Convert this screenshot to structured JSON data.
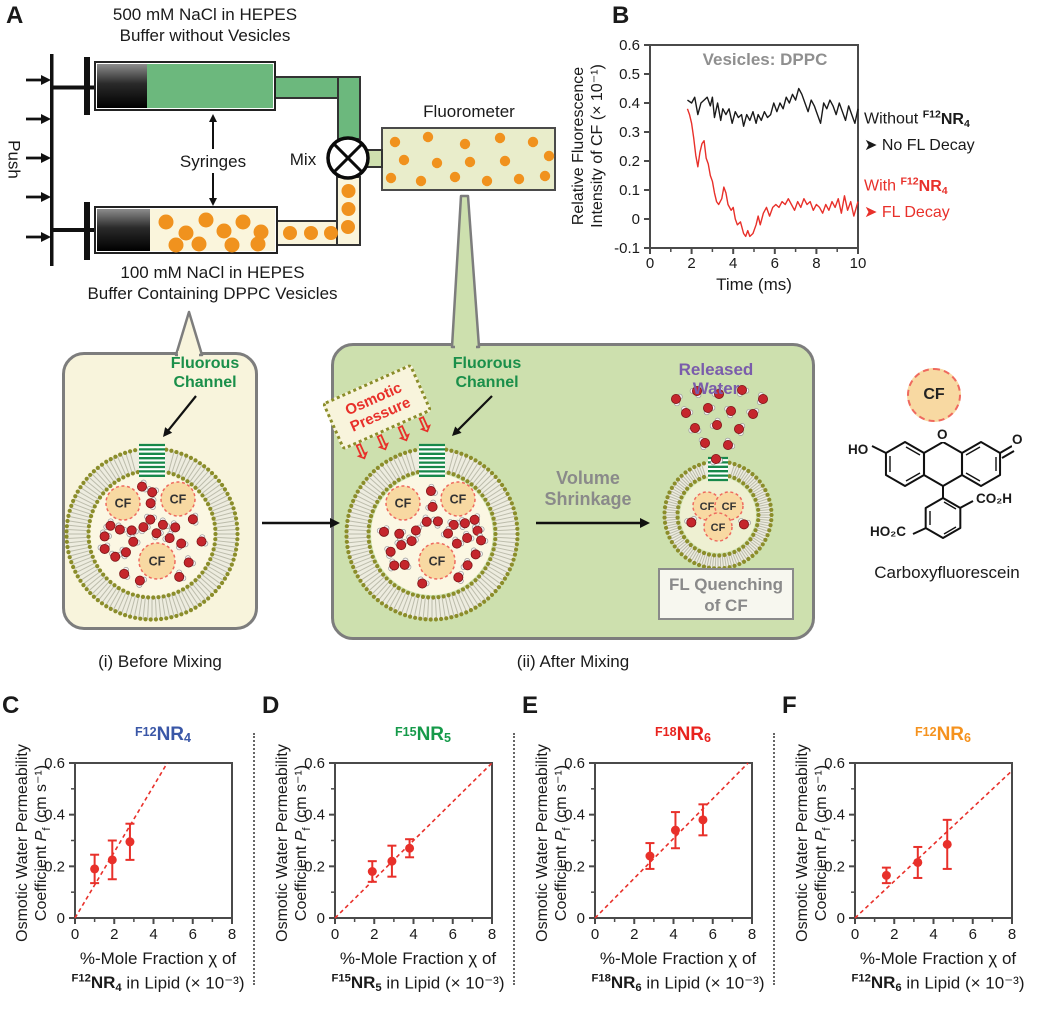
{
  "figure": {
    "panel_labels": {
      "A": "A",
      "B": "B",
      "C": "C",
      "D": "D",
      "E": "E",
      "F": "F"
    },
    "schematic": {
      "push": "Push",
      "top_reservoir": [
        "500 mM NaCl in HEPES",
        "Buffer without Vesicles"
      ],
      "bottom_reservoir": [
        "100 mM NaCl in HEPES",
        "Buffer Containing DPPC Vesicles"
      ],
      "syringes": "Syringes",
      "mix": "Mix",
      "fluorometer": "Fluorometer",
      "fluorous_channel": [
        "Fluorous",
        "Channel"
      ],
      "before_caption": "(i) Before Mixing",
      "after_caption": "(ii) After Mixing",
      "osmotic": [
        "Osmotic",
        "Pressure"
      ],
      "osmotic_arrow_icon": "⇩",
      "volume": [
        "Volume",
        "Shrinkage"
      ],
      "released": [
        "Released",
        "Water"
      ],
      "quench": [
        "FL Quenching",
        "of CF"
      ],
      "cf": "CF",
      "molecule": {
        "caption": "Carboxyfluorescein",
        "ho": "HO",
        "o_top": "O",
        "o_right": "O",
        "co2h": "CO₂H",
        "ho2c": "HO₂C"
      }
    }
  },
  "chart_data": [
    {
      "type": "line",
      "title": "Vesicles: DPPC",
      "title_color": "#8f8f8f",
      "xlabel": "Time (ms)",
      "ylabel_lines": [
        "Relative Fluorescence",
        "Intensity of CF (× 10⁻¹)"
      ],
      "xlim": [
        0,
        10
      ],
      "ylim": [
        -0.1,
        0.6
      ],
      "xticks": [
        0,
        2,
        4,
        6,
        8,
        10
      ],
      "xminor": [
        1,
        3,
        5,
        7,
        9
      ],
      "yticks": [
        0.6,
        0.5,
        0.4,
        0.3,
        0.2,
        0.1,
        0,
        -0.1
      ],
      "series": [
        {
          "name": "Without F12NR4",
          "color": "#1a1a1a",
          "points": [
            [
              1.8,
              0.41
            ],
            [
              2.0,
              0.4
            ],
            [
              2.15,
              0.42
            ],
            [
              2.3,
              0.36
            ],
            [
              2.45,
              0.4
            ],
            [
              2.6,
              0.41
            ],
            [
              2.75,
              0.42
            ],
            [
              2.9,
              0.39
            ],
            [
              3.0,
              0.42
            ],
            [
              3.1,
              0.35
            ],
            [
              3.25,
              0.4
            ],
            [
              3.4,
              0.34
            ],
            [
              3.5,
              0.38
            ],
            [
              3.65,
              0.36
            ],
            [
              3.8,
              0.38
            ],
            [
              3.95,
              0.33
            ],
            [
              4.1,
              0.37
            ],
            [
              4.25,
              0.35
            ],
            [
              4.4,
              0.36
            ],
            [
              4.5,
              0.32
            ],
            [
              4.65,
              0.36
            ],
            [
              4.8,
              0.34
            ],
            [
              4.95,
              0.37
            ],
            [
              5.1,
              0.33
            ],
            [
              5.2,
              0.36
            ],
            [
              5.35,
              0.34
            ],
            [
              5.5,
              0.37
            ],
            [
              5.65,
              0.35
            ],
            [
              5.8,
              0.36
            ],
            [
              5.95,
              0.4
            ],
            [
              6.1,
              0.37
            ],
            [
              6.25,
              0.4
            ],
            [
              6.4,
              0.38
            ],
            [
              6.55,
              0.42
            ],
            [
              6.7,
              0.4
            ],
            [
              6.85,
              0.43
            ],
            [
              7.0,
              0.41
            ],
            [
              7.15,
              0.45
            ],
            [
              7.3,
              0.43
            ],
            [
              7.45,
              0.4
            ],
            [
              7.6,
              0.37
            ],
            [
              7.75,
              0.41
            ],
            [
              7.9,
              0.39
            ],
            [
              8.05,
              0.36
            ],
            [
              8.2,
              0.33
            ],
            [
              8.35,
              0.4
            ],
            [
              8.5,
              0.38
            ],
            [
              8.65,
              0.41
            ],
            [
              8.8,
              0.39
            ],
            [
              8.95,
              0.36
            ],
            [
              9.1,
              0.4
            ],
            [
              9.25,
              0.37
            ],
            [
              9.4,
              0.34
            ],
            [
              9.55,
              0.39
            ],
            [
              9.7,
              0.36
            ],
            [
              9.85,
              0.33
            ],
            [
              10.0,
              0.38
            ]
          ]
        },
        {
          "name": "With F12NR4",
          "color": "#e8302a",
          "points": [
            [
              1.8,
              0.38
            ],
            [
              1.9,
              0.36
            ],
            [
              2.0,
              0.33
            ],
            [
              2.1,
              0.28
            ],
            [
              2.2,
              0.22
            ],
            [
              2.3,
              0.18
            ],
            [
              2.4,
              0.23
            ],
            [
              2.5,
              0.26
            ],
            [
              2.6,
              0.27
            ],
            [
              2.7,
              0.21
            ],
            [
              2.8,
              0.19
            ],
            [
              2.9,
              0.15
            ],
            [
              3.0,
              0.13
            ],
            [
              3.1,
              0.09
            ],
            [
              3.2,
              0.06
            ],
            [
              3.3,
              0.05
            ],
            [
              3.45,
              0.07
            ],
            [
              3.55,
              0.11
            ],
            [
              3.65,
              0.09
            ],
            [
              3.75,
              0.05
            ],
            [
              3.9,
              0.03
            ],
            [
              4.0,
              0.04
            ],
            [
              4.1,
              0.0
            ],
            [
              4.2,
              -0.02
            ],
            [
              4.35,
              -0.01
            ],
            [
              4.5,
              -0.05
            ],
            [
              4.6,
              -0.06
            ],
            [
              4.7,
              -0.04
            ],
            [
              4.8,
              -0.06
            ],
            [
              4.95,
              -0.05
            ],
            [
              5.1,
              -0.02
            ],
            [
              5.2,
              0.01
            ],
            [
              5.3,
              -0.02
            ],
            [
              5.45,
              0.02
            ],
            [
              5.6,
              0.04
            ],
            [
              5.75,
              0.01
            ],
            [
              5.9,
              0.04
            ],
            [
              6.05,
              0.05
            ],
            [
              6.2,
              0.04
            ],
            [
              6.35,
              0.06
            ],
            [
              6.5,
              0.05
            ],
            [
              6.65,
              0.07
            ],
            [
              6.8,
              0.05
            ],
            [
              6.95,
              0.03
            ],
            [
              7.1,
              0.06
            ],
            [
              7.25,
              0.04
            ],
            [
              7.4,
              0.07
            ],
            [
              7.55,
              0.05
            ],
            [
              7.7,
              0.06
            ],
            [
              7.85,
              0.03
            ],
            [
              8.0,
              0.05
            ],
            [
              8.15,
              0.04
            ],
            [
              8.3,
              0.02
            ],
            [
              8.45,
              0.05
            ],
            [
              8.6,
              0.03
            ],
            [
              8.75,
              0.06
            ],
            [
              8.9,
              0.04
            ],
            [
              9.05,
              0.07
            ],
            [
              9.2,
              0.02
            ],
            [
              9.35,
              0.08
            ],
            [
              9.5,
              0.03
            ],
            [
              9.65,
              0.06
            ],
            [
              9.8,
              0.01
            ],
            [
              10.0,
              0.06
            ]
          ]
        }
      ],
      "annotations": [
        {
          "color": "#1a1a1a",
          "prefix": "Without ",
          "sup": "F12",
          "base": "NR",
          "sub": "4",
          "line2": "➤ No FL Decay"
        },
        {
          "color": "#e8302a",
          "prefix": "With ",
          "sup": "F12",
          "base": "NR",
          "sub": "4",
          "line2": "➤ FL Decay"
        }
      ]
    },
    {
      "type": "scatter",
      "panel": "C",
      "title": {
        "sup": "F12",
        "base": "NR",
        "sub": "4",
        "color": "#3a57a7"
      },
      "xlabel_line1": "%-Mole Fraction χ of",
      "xlabel_sup": "F12",
      "xlabel_base": "NR",
      "xlabel_sub": "4",
      "xlabel_post": " in Lipid (× 10⁻³)",
      "ylabel_line1": "Osmotic Water Permeability",
      "ylabel_pre": "Coefficient ",
      "ylabel_P": "P",
      "ylabel_Psub": "f",
      "ylabel_post": " (cm s⁻¹)",
      "xlim": [
        0,
        8
      ],
      "ylim": [
        0,
        0.6
      ],
      "xticks": [
        0,
        2,
        4,
        6,
        8
      ],
      "xminor": [
        1,
        3,
        5,
        7
      ],
      "yticks": [
        0,
        0.2,
        0.4,
        0.6
      ],
      "yminor": [
        0.1,
        0.3,
        0.5
      ],
      "marker_color": "#e8302a",
      "points": [
        [
          1.0,
          0.19,
          0.055
        ],
        [
          1.9,
          0.225,
          0.075
        ],
        [
          2.8,
          0.295,
          0.07
        ]
      ],
      "trend": [
        4.7,
        0.6
      ]
    },
    {
      "type": "scatter",
      "panel": "D",
      "title": {
        "sup": "F15",
        "base": "NR",
        "sub": "5",
        "color": "#169a4a"
      },
      "xlabel_line1": "%-Mole Fraction χ of",
      "xlabel_sup": "F15",
      "xlabel_base": "NR",
      "xlabel_sub": "5",
      "xlabel_post": " in Lipid (× 10⁻³)",
      "ylabel_line1": "Osmotic Water Permeability",
      "ylabel_pre": "Coefficient ",
      "ylabel_P": "P",
      "ylabel_Psub": "f",
      "ylabel_post": " (cm s⁻¹)",
      "xlim": [
        0,
        8
      ],
      "ylim": [
        0,
        0.6
      ],
      "xticks": [
        0,
        2,
        4,
        6,
        8
      ],
      "xminor": [
        1,
        3,
        5,
        7
      ],
      "yticks": [
        0,
        0.2,
        0.4,
        0.6
      ],
      "yminor": [
        0.1,
        0.3,
        0.5
      ],
      "marker_color": "#e8302a",
      "points": [
        [
          1.9,
          0.18,
          0.04
        ],
        [
          2.9,
          0.22,
          0.06
        ],
        [
          3.8,
          0.27,
          0.035
        ]
      ],
      "trend": [
        8,
        0.6
      ]
    },
    {
      "type": "scatter",
      "panel": "E",
      "title": {
        "sup": "F18",
        "base": "NR",
        "sub": "6",
        "color": "#e8231e"
      },
      "xlabel_line1": "%-Mole Fraction χ of",
      "xlabel_sup": "F18",
      "xlabel_base": "NR",
      "xlabel_sub": "6",
      "xlabel_post": " in Lipid (× 10⁻³)",
      "ylabel_line1": "Osmotic Water Permeability",
      "ylabel_pre": "Coefficient ",
      "ylabel_P": "P",
      "ylabel_Psub": "f",
      "ylabel_post": " (cm s⁻¹)",
      "xlim": [
        0,
        8
      ],
      "ylim": [
        0,
        0.6
      ],
      "xticks": [
        0,
        2,
        4,
        6,
        8
      ],
      "xminor": [
        1,
        3,
        5,
        7
      ],
      "yticks": [
        0,
        0.2,
        0.4,
        0.6
      ],
      "yminor": [
        0.1,
        0.3,
        0.5
      ],
      "marker_color": "#e8302a",
      "points": [
        [
          2.8,
          0.24,
          0.05
        ],
        [
          4.1,
          0.34,
          0.07
        ],
        [
          5.5,
          0.38,
          0.06
        ]
      ],
      "trend": [
        7.8,
        0.6
      ]
    },
    {
      "type": "scatter",
      "panel": "F",
      "title": {
        "sup": "F12",
        "base": "NR",
        "sub": "6",
        "color": "#f5921e"
      },
      "xlabel_line1": "%-Mole Fraction χ of",
      "xlabel_sup": "F12",
      "xlabel_base": "NR",
      "xlabel_sub": "6",
      "xlabel_post": " in Lipid (× 10⁻³)",
      "ylabel_line1": "Osmotic Water Permeability",
      "ylabel_pre": "Coefficient ",
      "ylabel_P": "P",
      "ylabel_Psub": "f",
      "ylabel_post": " (cm s⁻¹)",
      "xlim": [
        0,
        8
      ],
      "ylim": [
        0,
        0.6
      ],
      "xticks": [
        0,
        2,
        4,
        6,
        8
      ],
      "xminor": [
        1,
        3,
        5,
        7
      ],
      "yticks": [
        0,
        0.2,
        0.4,
        0.6
      ],
      "yminor": [
        0.1,
        0.3,
        0.5
      ],
      "marker_color": "#e8302a",
      "points": [
        [
          1.6,
          0.165,
          0.03
        ],
        [
          3.2,
          0.215,
          0.06
        ],
        [
          4.7,
          0.285,
          0.095
        ]
      ],
      "trend": [
        8,
        0.57
      ]
    }
  ]
}
